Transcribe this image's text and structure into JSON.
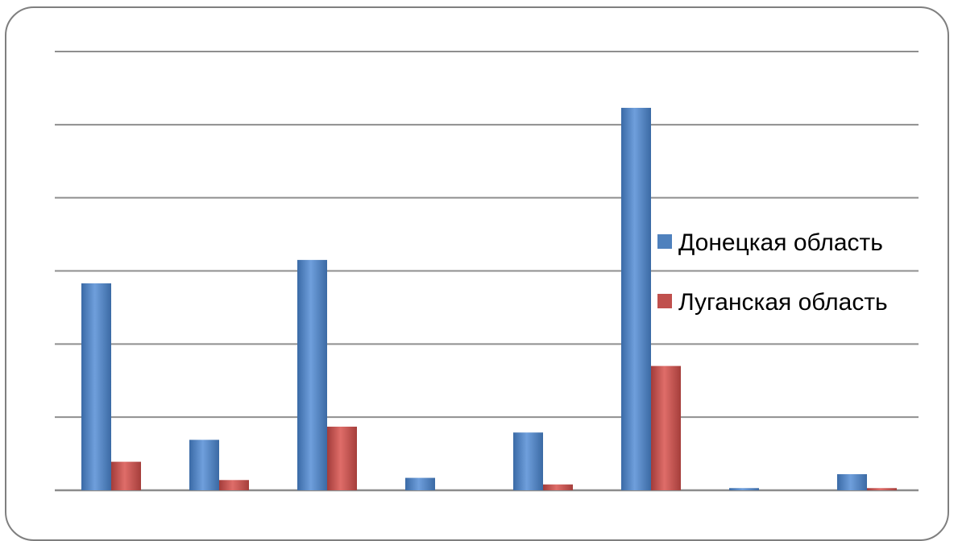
{
  "chart_data": {
    "type": "bar",
    "categories": [
      "",
      "",
      "",
      "",
      "",
      "",
      "",
      ""
    ],
    "series": [
      {
        "name": "Донецкая область",
        "color": "#4f81bd",
        "values": [
          2.83,
          0.69,
          3.15,
          0.17,
          0.79,
          5.23,
          0.03,
          0.22
        ]
      },
      {
        "name": "Луганская область",
        "color": "#c0504d",
        "values": [
          0.39,
          0.14,
          0.87,
          0,
          0.08,
          1.7,
          0,
          0.03
        ]
      }
    ],
    "title": "",
    "xlabel": "",
    "ylabel": "",
    "ylim": [
      0,
      6
    ],
    "grid": true,
    "legend_position": "right"
  }
}
